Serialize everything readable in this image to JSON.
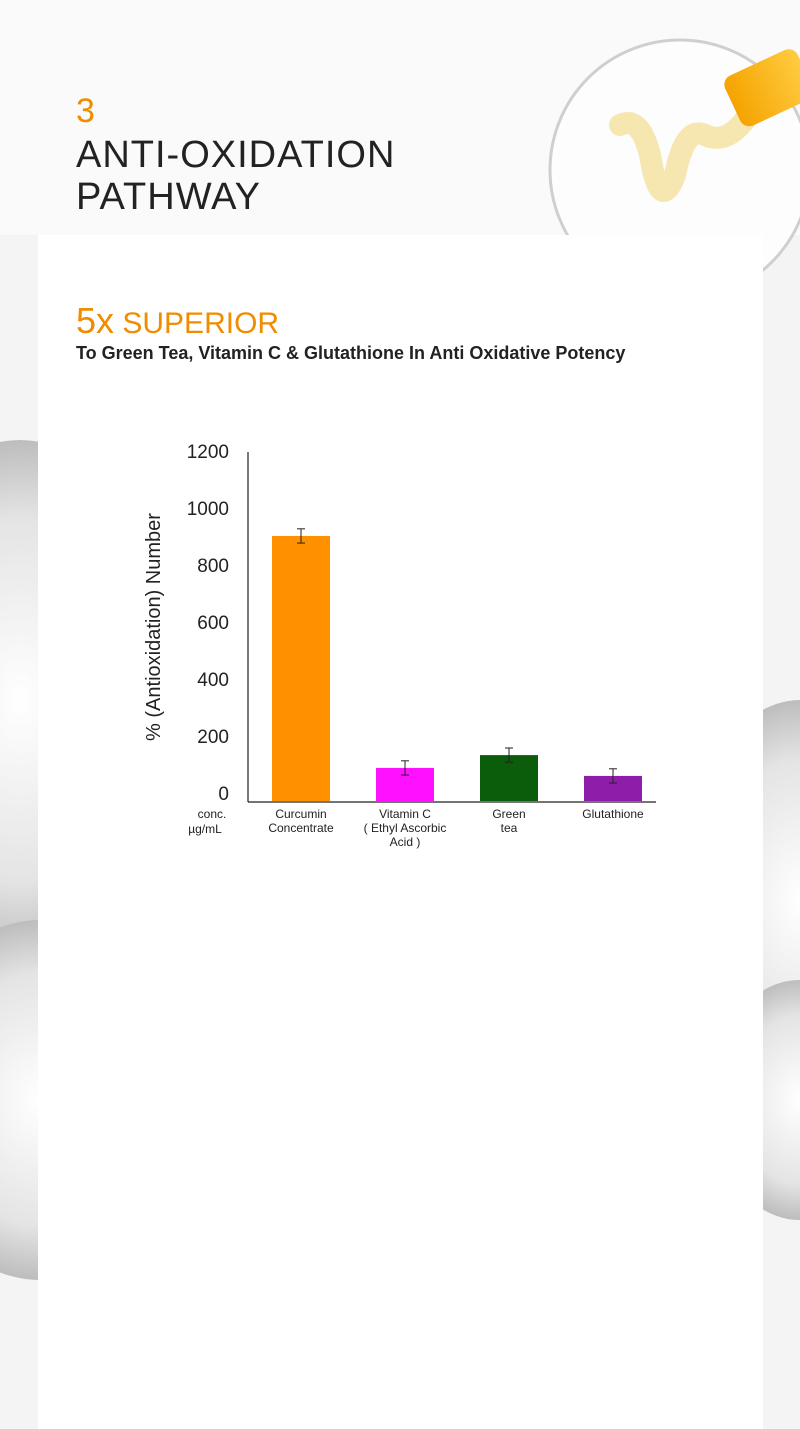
{
  "header": {
    "number": "3",
    "title_lines": [
      "ANTI-OXIDATION",
      "PATHWAY"
    ],
    "highlight": "5x",
    "highlight_rest": "SUPERIOR",
    "subtitle": "To Green Tea, Vitamin C & Glutathione In Anti Oxidative Potency"
  },
  "chart_data": {
    "type": "bar",
    "categories": [
      [
        "Curcumin",
        "Concentrate"
      ],
      [
        "Vitamin C",
        "( Ethyl Ascorbic",
        "Acid )"
      ],
      [
        "Green",
        "tea"
      ],
      [
        "Glutathione"
      ]
    ],
    "values": [
      930,
      116,
      161,
      88
    ],
    "errors": [
      25,
      25,
      25,
      25
    ],
    "colors": [
      "#ff9100",
      "#ff10ff",
      "#0b5c0b",
      "#8e1eaa"
    ],
    "ylabel": "% (Antioxidation) Number",
    "xlabel": [
      "conc.",
      "µg/mL"
    ],
    "ylim": [
      0,
      1200
    ],
    "yticks": [
      0,
      200,
      400,
      600,
      800,
      1000,
      1200
    ],
    "grid": false
  }
}
